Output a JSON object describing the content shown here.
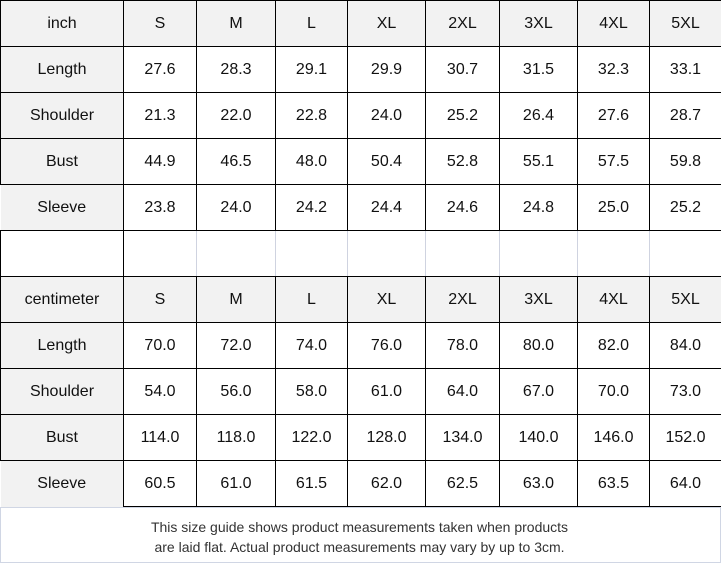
{
  "sizes": [
    "S",
    "M",
    "L",
    "XL",
    "2XL",
    "3XL",
    "4XL",
    "5XL"
  ],
  "tables": [
    {
      "unit": "inch",
      "rows": [
        {
          "label": "Length",
          "values": [
            "27.6",
            "28.3",
            "29.1",
            "29.9",
            "30.7",
            "31.5",
            "32.3",
            "33.1"
          ]
        },
        {
          "label": "Shoulder",
          "values": [
            "21.3",
            "22.0",
            "22.8",
            "24.0",
            "25.2",
            "26.4",
            "27.6",
            "28.7"
          ]
        },
        {
          "label": "Bust",
          "values": [
            "44.9",
            "46.5",
            "48.0",
            "50.4",
            "52.8",
            "55.1",
            "57.5",
            "59.8"
          ]
        },
        {
          "label": "Sleeve",
          "values": [
            "23.8",
            "24.0",
            "24.2",
            "24.4",
            "24.6",
            "24.8",
            "25.0",
            "25.2"
          ]
        }
      ]
    },
    {
      "unit": "centimeter",
      "rows": [
        {
          "label": "Length",
          "values": [
            "70.0",
            "72.0",
            "74.0",
            "76.0",
            "78.0",
            "80.0",
            "82.0",
            "84.0"
          ]
        },
        {
          "label": "Shoulder",
          "values": [
            "54.0",
            "56.0",
            "58.0",
            "61.0",
            "64.0",
            "67.0",
            "70.0",
            "73.0"
          ]
        },
        {
          "label": "Bust",
          "values": [
            "114.0",
            "118.0",
            "122.0",
            "128.0",
            "134.0",
            "140.0",
            "146.0",
            "152.0"
          ]
        },
        {
          "label": "Sleeve",
          "values": [
            "60.5",
            "61.0",
            "61.5",
            "62.0",
            "62.5",
            "63.0",
            "63.5",
            "64.0"
          ]
        }
      ]
    }
  ],
  "note": {
    "line1": "This size guide shows product measurements taken when products",
    "line2": "are laid flat. Actual product measurements may vary by up to 3cm."
  }
}
